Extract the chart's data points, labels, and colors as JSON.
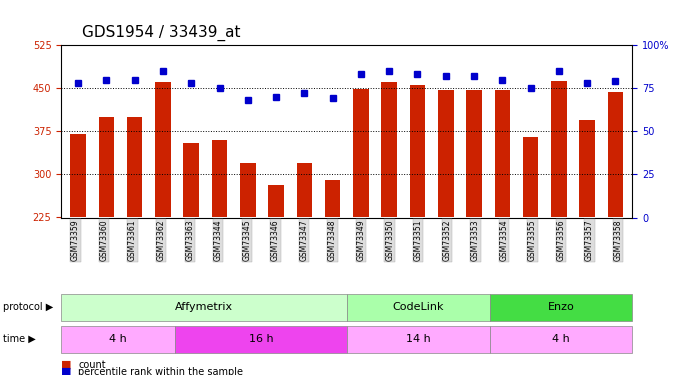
{
  "title": "GDS1954 / 33439_at",
  "samples": [
    "GSM73359",
    "GSM73360",
    "GSM73361",
    "GSM73362",
    "GSM73363",
    "GSM73344",
    "GSM73345",
    "GSM73346",
    "GSM73347",
    "GSM73348",
    "GSM73349",
    "GSM73350",
    "GSM73351",
    "GSM73352",
    "GSM73353",
    "GSM73354",
    "GSM73355",
    "GSM73356",
    "GSM73357",
    "GSM73358"
  ],
  "counts": [
    370,
    400,
    400,
    460,
    355,
    360,
    320,
    282,
    320,
    290,
    448,
    460,
    455,
    447,
    447,
    447,
    365,
    462,
    395,
    443
  ],
  "percentiles": [
    78,
    80,
    80,
    85,
    78,
    75,
    68,
    70,
    72,
    69,
    83,
    85,
    83,
    82,
    82,
    80,
    75,
    85,
    78,
    79
  ],
  "ylim_left": [
    225,
    525
  ],
  "ylim_right": [
    0,
    100
  ],
  "yticks_left": [
    225,
    300,
    375,
    450,
    525
  ],
  "yticks_right": [
    0,
    25,
    50,
    75,
    100
  ],
  "bar_color": "#cc2200",
  "dot_color": "#0000cc",
  "bg_color": "#ffffff",
  "plot_bg": "#ffffff",
  "protocol_groups": [
    {
      "label": "Affymetrix",
      "start": 0,
      "end": 9,
      "color": "#ccffcc"
    },
    {
      "label": "CodeLink",
      "start": 10,
      "end": 14,
      "color": "#aaffaa"
    },
    {
      "label": "Enzo",
      "start": 15,
      "end": 19,
      "color": "#44dd44"
    }
  ],
  "time_groups": [
    {
      "label": "4 h",
      "start": 0,
      "end": 3,
      "color": "#ffaaff"
    },
    {
      "label": "16 h",
      "start": 4,
      "end": 9,
      "color": "#ee44ee"
    },
    {
      "label": "14 h",
      "start": 10,
      "end": 14,
      "color": "#ffaaff"
    },
    {
      "label": "4 h",
      "start": 15,
      "end": 19,
      "color": "#ffaaff"
    }
  ],
  "title_fontsize": 11,
  "tick_fontsize": 7,
  "label_fontsize": 8
}
